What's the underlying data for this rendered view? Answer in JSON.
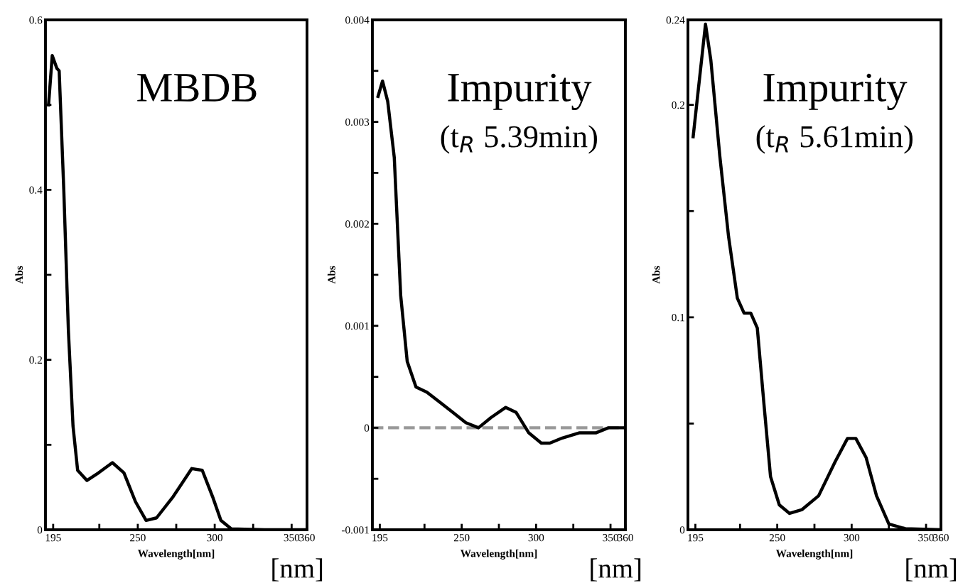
{
  "chart_data": [
    {
      "type": "line",
      "xlabel": "Wavelength[nm]",
      "ylabel": "Abs",
      "annotations": [
        "MBDB",
        "[nm]"
      ],
      "x": [
        192,
        194.4,
        197.4,
        198.9,
        201.9,
        204.9,
        207.9,
        210.9,
        216.9,
        224.5,
        233.5,
        241,
        248.5,
        255.4,
        262.2,
        273,
        285.1,
        291.9,
        298.6,
        304,
        310.8,
        332.4,
        359
      ],
      "series": [
        {
          "color": "#000000",
          "values": [
            0.5,
            0.558,
            0.543,
            0.54,
            0.4,
            0.234,
            0.122,
            0.07,
            0.058,
            0.067,
            0.079,
            0.067,
            0.033,
            0.011,
            0.014,
            0.039,
            0.072,
            0.07,
            0.039,
            0.011,
            0.001,
            0,
            0
          ]
        }
      ],
      "xlim": [
        190,
        360
      ],
      "ylim": [
        0,
        0.6
      ],
      "xticks": [
        195,
        {
          "value": 225,
          "label": null
        },
        250,
        {
          "value": 275,
          "label": null
        },
        300,
        {
          "value": 325,
          "label": null
        },
        350,
        360
      ],
      "yticks": [
        0,
        {
          "value": 0.1,
          "label": null
        },
        0.2,
        {
          "value": 0.3,
          "label": null
        },
        0.4,
        {
          "value": 0.5,
          "label": null
        },
        0.6
      ]
    },
    {
      "type": "line",
      "xlabel": "Wavelength[nm]",
      "ylabel": "Abs",
      "annotations": [
        "Impurity",
        "(t$_{R}$ 5.39min)",
        "[nm]"
      ],
      "x": [
        193.8,
        196.8,
        200.3,
        204.7,
        209,
        213.4,
        219.3,
        226.6,
        235.4,
        244.1,
        252.8,
        261.3,
        269.7,
        279.6,
        286.6,
        295.1,
        303.5,
        309.2,
        317.6,
        328.9,
        340.1,
        348.6,
        359.9
      ],
      "series": [
        {
          "color": "#000000",
          "values": [
            0.00325,
            0.0034,
            0.0032,
            0.00265,
            0.0013,
            0.00065,
            0.0004,
            0.00035,
            0.00025,
            0.00015,
            5e-05,
            0,
            0.0001,
            0.0002,
            0.00015,
            -5e-05,
            -0.00015,
            -0.00015,
            -0.0001,
            -5e-05,
            -5e-05,
            0,
            0
          ]
        }
      ],
      "xlim": [
        190,
        360
      ],
      "ylim": [
        -0.001,
        0.004
      ],
      "xticks": [
        195,
        {
          "value": 225,
          "label": null
        },
        250,
        {
          "value": 275,
          "label": null
        },
        300,
        {
          "value": 325,
          "label": null
        },
        350,
        360
      ],
      "yticks": [
        {
          "value": -0.001,
          "label": "-0.001"
        },
        {
          "value": -0.0005,
          "label": null
        },
        0,
        {
          "value": 0.0005,
          "label": null
        },
        0.001,
        {
          "value": 0.0015,
          "label": null
        },
        0.002,
        {
          "value": 0.0025,
          "label": null
        },
        0.003,
        {
          "value": 0.0035,
          "label": null
        },
        0.004
      ],
      "ref_lines": [
        {
          "axis": "y",
          "value": 0,
          "color": "#999999",
          "line_style": "dashed"
        }
      ]
    },
    {
      "type": "line",
      "xlabel": "Wavelength[nm]",
      "ylabel": "Abs",
      "annotations": [
        "Impurity",
        "(t$_{R}$ 5.61min)",
        "[nm]"
      ],
      "x": [
        193.5,
        201.8,
        205.4,
        211.4,
        217.3,
        223.2,
        227.7,
        232.2,
        236.6,
        241.1,
        245.5,
        251.4,
        258.3,
        266.7,
        277.8,
        288.9,
        297.2,
        302.8,
        309.7,
        316.7,
        325,
        336.1,
        360
      ],
      "series": [
        {
          "color": "#000000",
          "values": [
            0.185,
            0.238,
            0.221,
            0.176,
            0.138,
            0.109,
            0.102,
            0.102,
            0.095,
            0.059,
            0.025,
            0.0117,
            0.0077,
            0.0095,
            0.016,
            0.032,
            0.043,
            0.043,
            0.034,
            0.016,
            0.0027,
            0.0005,
            0
          ]
        }
      ],
      "xlim": [
        190,
        360
      ],
      "ylim": [
        0,
        0.24
      ],
      "xticks": [
        195,
        {
          "value": 225,
          "label": null
        },
        250,
        {
          "value": 275,
          "label": null
        },
        300,
        {
          "value": 325,
          "label": null
        },
        350,
        360
      ],
      "yticks": [
        0,
        {
          "value": 0.05,
          "label": null
        },
        0.1,
        {
          "value": 0.15,
          "label": null
        },
        0.2,
        0.24
      ]
    }
  ]
}
